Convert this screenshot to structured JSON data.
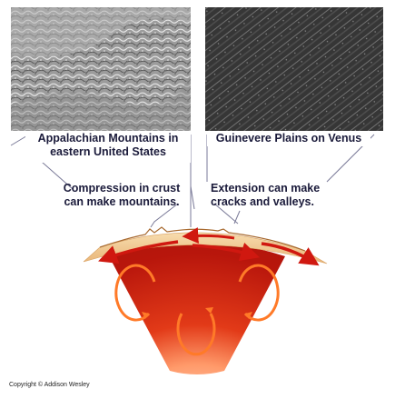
{
  "photos": {
    "left": {
      "caption_line1": "Appalachian Mountains in",
      "caption_line2": "eastern United States"
    },
    "right": {
      "caption": "Guinevere Plains on Venus"
    }
  },
  "labels": {
    "compression_line1": "Compression in crust",
    "compression_line2": "can make mountains.",
    "extension_line1": "Extension can make",
    "extension_line2": "cracks and valleys."
  },
  "footer": {
    "copyright": "Copyright © Addison Wesley"
  },
  "colors": {
    "crust": "#f0c48a",
    "mantle_outer": "#c81e10",
    "mantle_inner": "#e8501c",
    "core_glow": "#ff8a3a",
    "convection_arrows": "#ff6a20",
    "crust_arrows": "#d01810",
    "leader_lines": "#6a6a88"
  },
  "icons": [
    "convection-loop-arrow",
    "crust-motion-arrow"
  ]
}
